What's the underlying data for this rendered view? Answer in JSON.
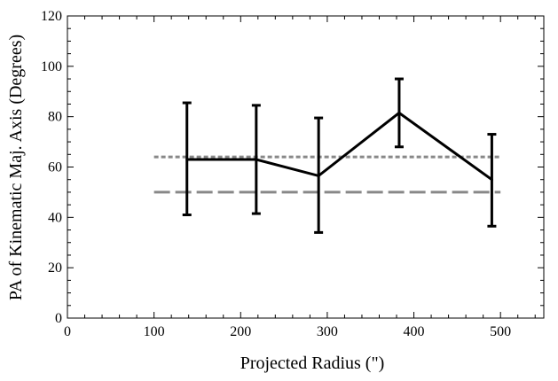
{
  "chart_data": {
    "type": "line",
    "xlabel": "Projected Radius (\")",
    "ylabel": "PA of Kinematic Maj. Axis (Degrees)",
    "xlim": [
      0,
      550
    ],
    "ylim": [
      0,
      120
    ],
    "x_ticks": [
      "0",
      "100",
      "200",
      "300",
      "400",
      "500"
    ],
    "y_ticks": [
      "0",
      "20",
      "40",
      "60",
      "80",
      "100",
      "120"
    ],
    "grid": false,
    "series": [
      {
        "x": [
          138,
          218,
          290,
          383,
          490
        ],
        "y": [
          63,
          63,
          56.5,
          81.5,
          55
        ],
        "err_low": [
          41,
          41.5,
          34,
          68,
          36.5
        ],
        "err_high": [
          85.5,
          84.5,
          79.5,
          95,
          73
        ],
        "color": "#000000",
        "style": "solid"
      }
    ],
    "reference_lines": [
      {
        "y": 64,
        "x_range": [
          100,
          500
        ],
        "style": "dotted",
        "color": "#888888"
      },
      {
        "y": 50,
        "x_range": [
          100,
          500
        ],
        "style": "dashed",
        "color": "#888888"
      }
    ]
  }
}
